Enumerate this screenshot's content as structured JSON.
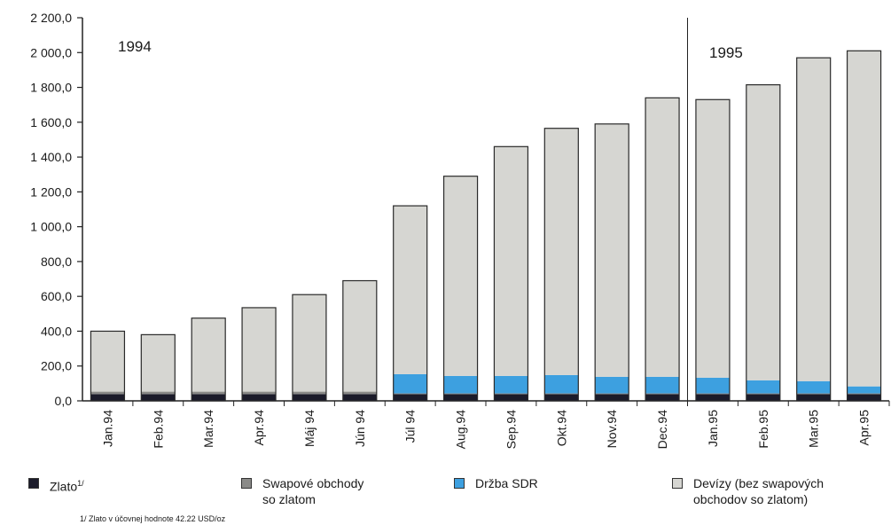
{
  "chart_data": {
    "type": "bar",
    "stacked": true,
    "categories": [
      "Jan.94",
      "Feb.94",
      "Mar.94",
      "Apr.94",
      "Máj 94",
      "Jún 94",
      "Júl 94",
      "Aug.94",
      "Sep.94",
      "Okt.94",
      "Nov.94",
      "Dec.94",
      "Jan.95",
      "Feb.95",
      "Mar.95",
      "Apr.95"
    ],
    "year_labels": [
      "1994",
      "1995"
    ],
    "ylim": [
      0,
      2200
    ],
    "yticks": [
      0,
      200,
      400,
      600,
      800,
      1000,
      1200,
      1400,
      1600,
      1800,
      2000,
      2200
    ],
    "ytick_labels": [
      "0,0",
      "200,0",
      "400,0",
      "600,0",
      "800,0",
      "1 000,0",
      "1 200,0",
      "1 400,0",
      "1 600,0",
      "1 800,0",
      "2 000,0",
      "2 200,0"
    ],
    "grid": false,
    "legend_position": "bottom",
    "series": [
      {
        "name": "Zlato",
        "name_sup": "1/",
        "color": "#1b1b2a",
        "values": [
          38,
          38,
          38,
          38,
          38,
          38,
          38,
          38,
          38,
          38,
          38,
          38,
          38,
          38,
          38,
          38
        ]
      },
      {
        "name": "Swapové obchody\nso zlatom",
        "color": "#8a8a88",
        "values": [
          15,
          15,
          15,
          15,
          15,
          15,
          5,
          5,
          5,
          5,
          5,
          5,
          5,
          5,
          5,
          5
        ]
      },
      {
        "name": "Držba SDR",
        "color": "#3da0e0",
        "values": [
          0,
          0,
          0,
          0,
          0,
          0,
          110,
          100,
          100,
          105,
          95,
          95,
          90,
          75,
          70,
          40
        ]
      },
      {
        "name": "Devízy (bez swapových\nobchodov so zlatom)",
        "color": "#d6d6d2",
        "values": [
          347,
          327,
          422,
          482,
          557,
          637,
          967,
          1147,
          1317,
          1417,
          1452,
          1602,
          1597,
          1697,
          1857,
          1927
        ]
      }
    ],
    "footnote": "1/ Zlato v účovnej hodnote 42.22 USD/oz"
  }
}
